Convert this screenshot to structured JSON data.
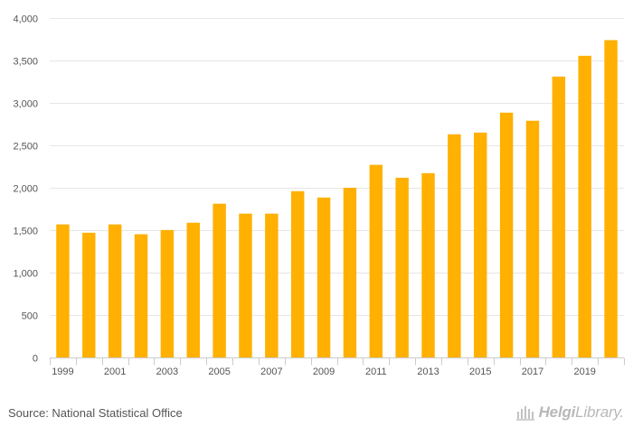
{
  "chart_data": {
    "type": "bar",
    "categories": [
      "1999",
      "2000",
      "2001",
      "2002",
      "2003",
      "2004",
      "2005",
      "2006",
      "2007",
      "2008",
      "2009",
      "2010",
      "2011",
      "2012",
      "2013",
      "2014",
      "2015",
      "2016",
      "2017",
      "2018",
      "2019",
      "2020"
    ],
    "values": [
      1568,
      1470,
      1568,
      1452,
      1502,
      1588,
      1812,
      1695,
      1695,
      1960,
      1885,
      2000,
      2270,
      2118,
      2172,
      2630,
      2650,
      2885,
      2790,
      3310,
      3555,
      3740
    ],
    "x_tick_labels": [
      "1999",
      "2001",
      "2003",
      "2005",
      "2007",
      "2009",
      "2011",
      "2013",
      "2015",
      "2017",
      "2019"
    ],
    "y_ticks": [
      0,
      500,
      1000,
      1500,
      2000,
      2500,
      3000,
      3500,
      4000
    ],
    "y_tick_labels": [
      "0",
      "500",
      "1,000",
      "1,500",
      "2,000",
      "2,500",
      "3,000",
      "3,500",
      "4,000"
    ],
    "ylim": [
      0,
      4000
    ],
    "bar_color": "#FFB000",
    "title": "",
    "xlabel": "",
    "ylabel": ""
  },
  "footer": {
    "source": "Source: National Statistical Office",
    "brand_bold": "Helgi",
    "brand_light": "Library."
  }
}
